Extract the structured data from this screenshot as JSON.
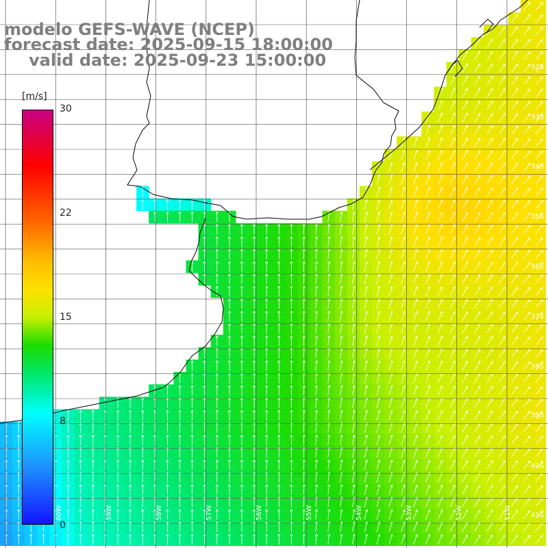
{
  "title": {
    "line1": "modelo GEFS-WAVE (NCEP)",
    "line2": "forecast date: 2025-09-15 18:00:00",
    "line3": "valid date: 2025-09-23 15:00:00"
  },
  "colorbar": {
    "unit": "[m/s]",
    "min": 0,
    "max": 30,
    "ticks": [
      "30",
      "22",
      "15",
      "8",
      "0"
    ],
    "tick_values": [
      30,
      22,
      15,
      8,
      0
    ]
  },
  "lat_labels": [
    "32S",
    "33S",
    "34S",
    "35S",
    "36S",
    "37S",
    "38S",
    "39S",
    "40S",
    "41S"
  ],
  "lon_labels": [
    "60W",
    "59W",
    "58W",
    "57W",
    "56W",
    "55W",
    "54W",
    "53W",
    "52W",
    "51W"
  ],
  "colors": {
    "land": "#ffffff",
    "grid": "#555555",
    "coast": "#000000",
    "title": "#7f7f7f",
    "arrows": "#ffffff"
  },
  "field": {
    "variable": "wind speed",
    "range_ms": [
      5,
      18
    ],
    "arrow_direction": "mostly northward, turning north-east offshore"
  }
}
